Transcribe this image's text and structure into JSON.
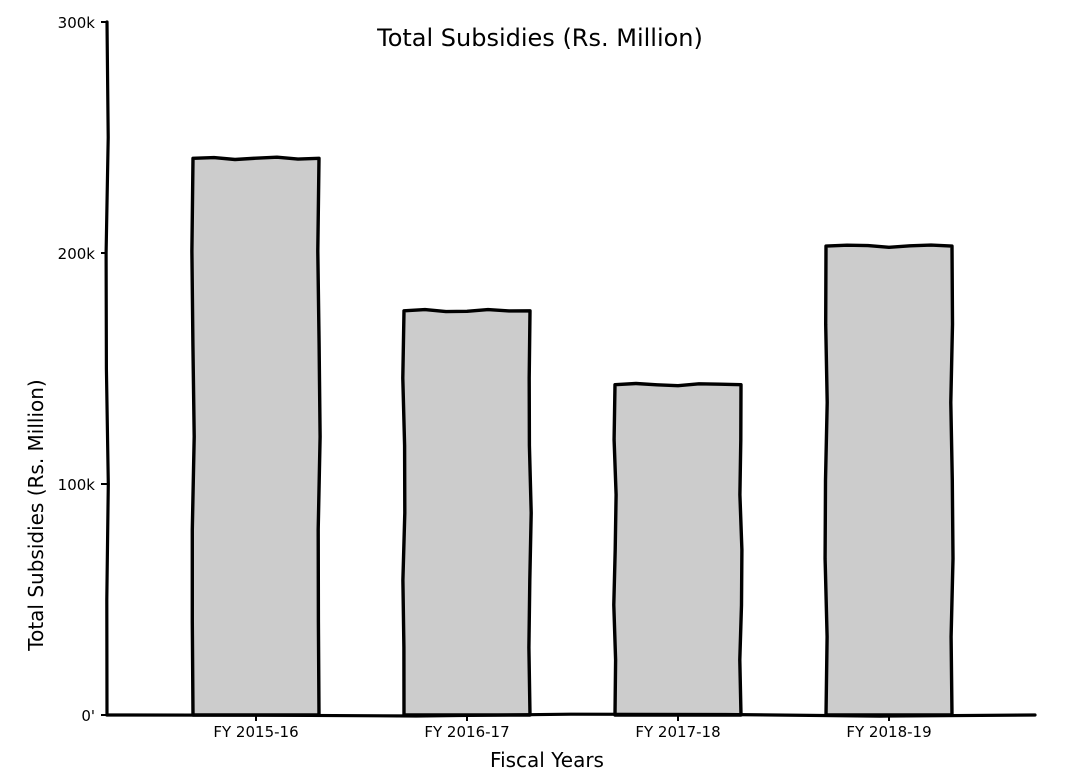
{
  "chart_data": {
    "type": "bar",
    "title": "Total Subsidies (Rs. Million)",
    "xlabel": "Fiscal Years",
    "ylabel": "Total Subsidies (Rs. Million)",
    "categories": [
      "FY 2015-16",
      "FY 2016-17",
      "FY 2017-18",
      "FY 2018-19"
    ],
    "values": [
      241000,
      175000,
      143000,
      203000
    ],
    "ylim": [
      0,
      300000
    ],
    "yticks": [
      0,
      100000,
      200000,
      300000
    ],
    "ytick_labels": [
      "0'",
      "100k",
      "200k",
      "300k"
    ],
    "grid": false,
    "legend": "none",
    "colors": {
      "bar_fill": "#cccccc",
      "bar_stroke": "#000000",
      "axis": "#000000",
      "background": "#ffffff"
    }
  }
}
